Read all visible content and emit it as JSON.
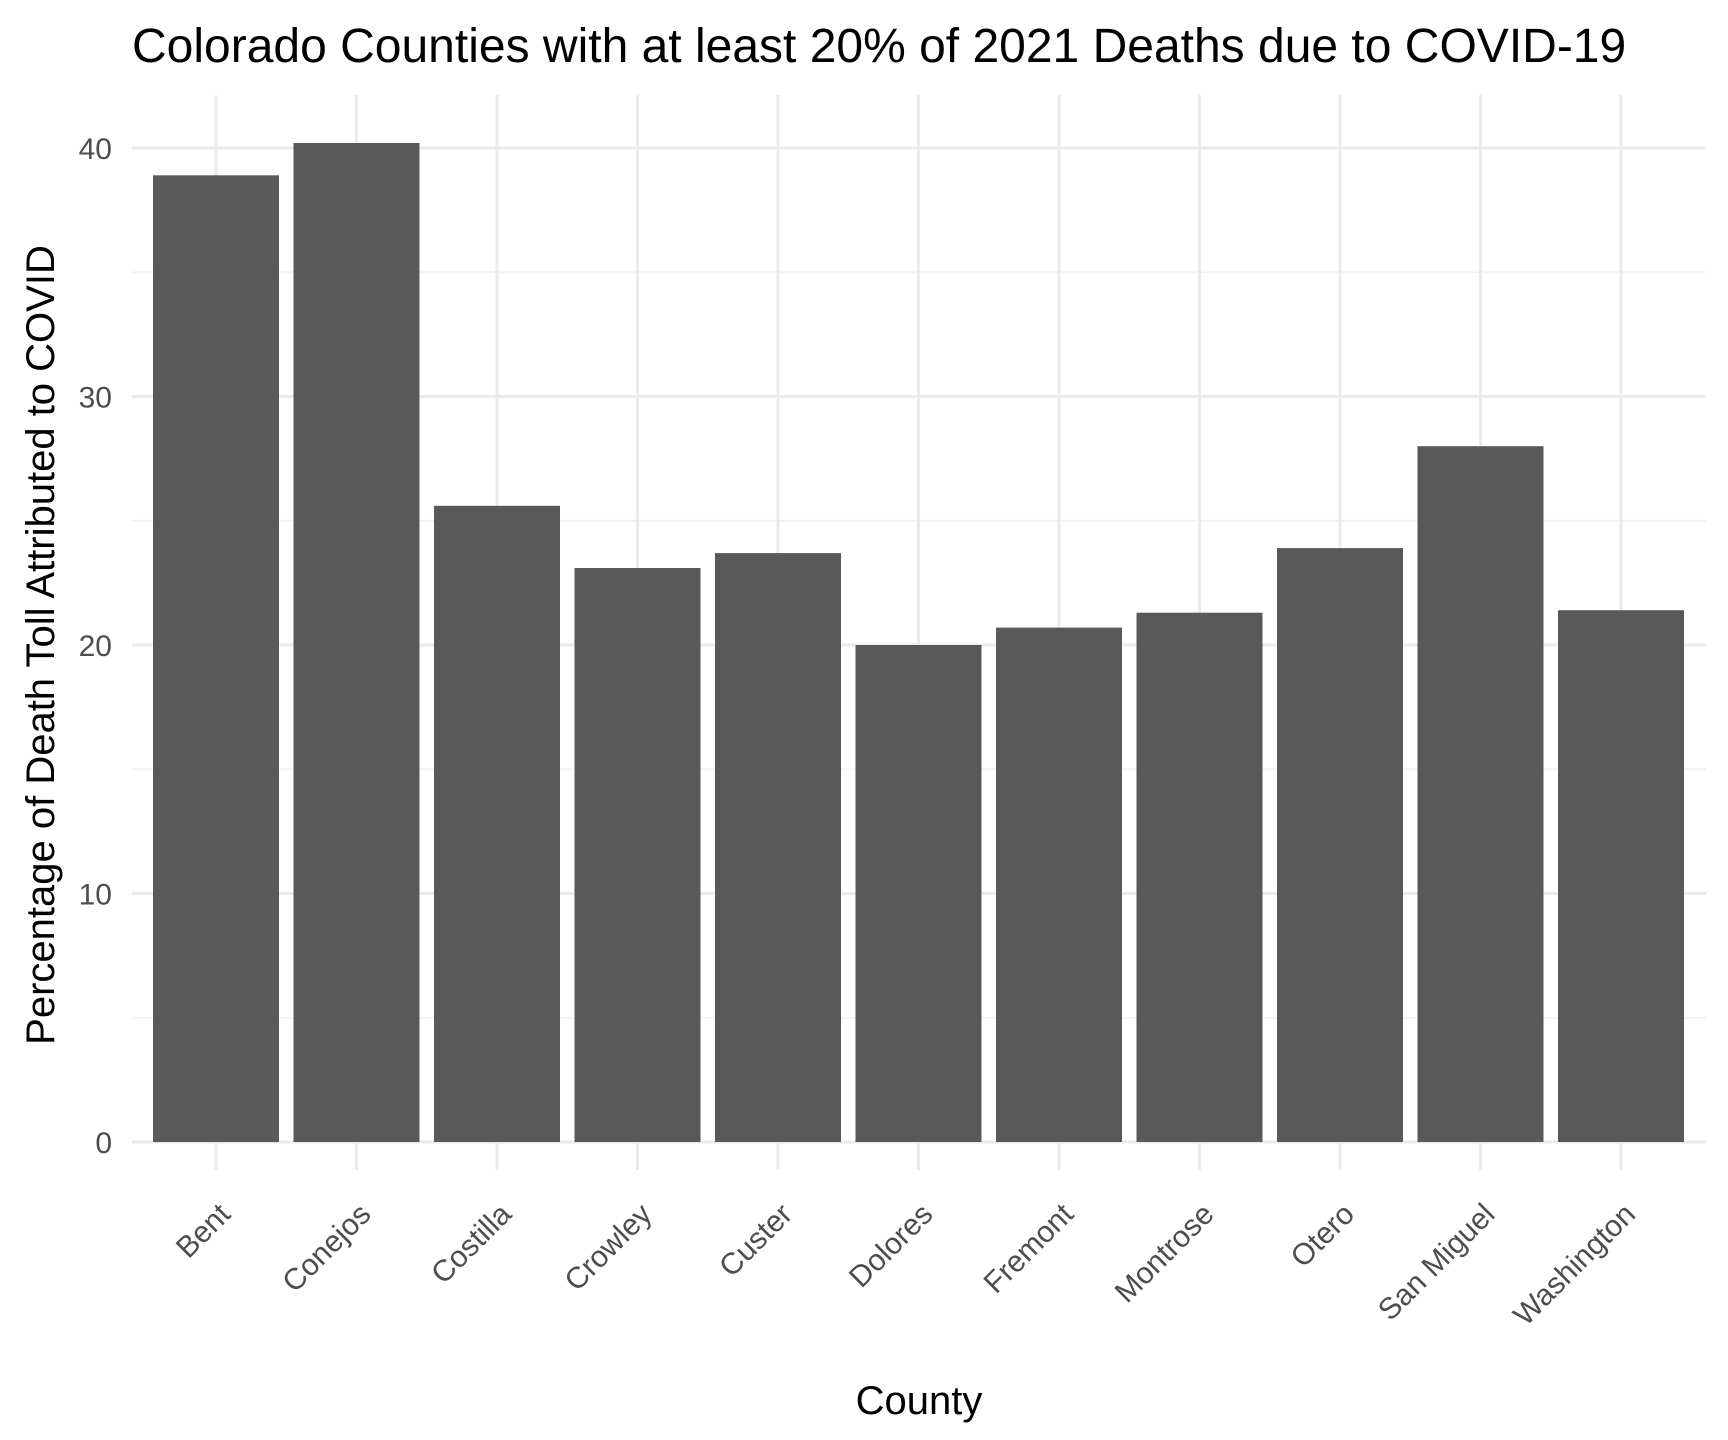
{
  "chart_data": {
    "type": "bar",
    "title": "Colorado Counties with at least 20% of 2021 Deaths due to COVID-19",
    "xlabel": "County",
    "ylabel": "Percentage of Death Toll Attributed to COVID",
    "categories": [
      "Bent",
      "Conejos",
      "Costilla",
      "Crowley",
      "Custer",
      "Dolores",
      "Fremont",
      "Montrose",
      "Otero",
      "San Miguel",
      "Washington"
    ],
    "values": [
      38.9,
      40.2,
      25.6,
      23.1,
      23.7,
      20.0,
      20.7,
      21.3,
      23.9,
      28.0,
      21.4
    ],
    "ylim": [
      0,
      42
    ],
    "yticks": [
      0,
      10,
      20,
      30,
      40
    ],
    "grid": true,
    "bar_color": "#595959"
  }
}
